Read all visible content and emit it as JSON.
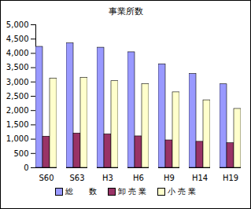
{
  "chart_data": {
    "type": "bar",
    "title": "事業所数",
    "categories": [
      "S60",
      "S63",
      "H3",
      "H6",
      "H9",
      "H14",
      "H19"
    ],
    "series": [
      {
        "name": "総　　数",
        "color": "#9999ff",
        "values": [
          4230,
          4350,
          4200,
          4040,
          3620,
          3280,
          2920
        ]
      },
      {
        "name": "卸 売 業",
        "color": "#993366",
        "values": [
          1090,
          1200,
          1170,
          1100,
          960,
          910,
          860
        ]
      },
      {
        "name": "小 売 業",
        "color": "#ffffcc",
        "values": [
          3120,
          3150,
          3030,
          2930,
          2640,
          2360,
          2060
        ]
      }
    ],
    "ylim": [
      0,
      5000
    ],
    "yticks": [
      0,
      500,
      {
        "value": 1000,
        "label": "1,000"
      },
      {
        "value": 1500,
        "label": "1,500"
      },
      {
        "value": 2000,
        "label": "2,000"
      },
      {
        "value": 2500,
        "label": "2,500"
      },
      {
        "value": 3000,
        "label": "3,000"
      },
      {
        "value": 3500,
        "label": "3,500"
      },
      {
        "value": 4000,
        "label": "4,000"
      },
      {
        "value": 4500,
        "label": "4,500"
      },
      {
        "value": 5000,
        "label": "5,000"
      }
    ],
    "grid": false,
    "legend": "bottom"
  }
}
